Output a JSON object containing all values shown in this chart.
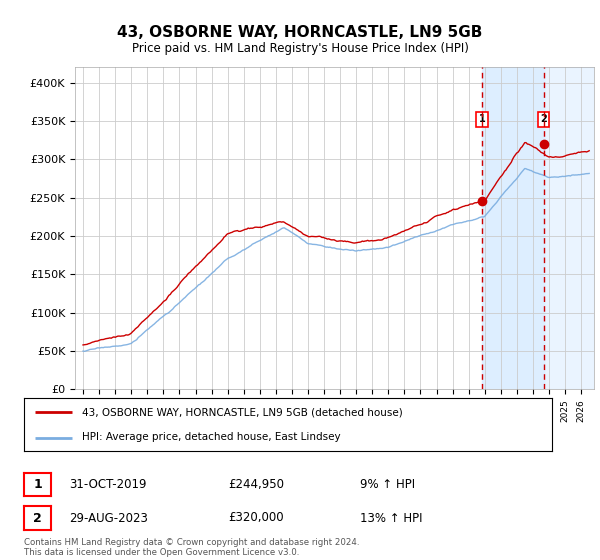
{
  "title": "43, OSBORNE WAY, HORNCASTLE, LN9 5GB",
  "subtitle": "Price paid vs. HM Land Registry's House Price Index (HPI)",
  "hpi_label": "HPI: Average price, detached house, East Lindsey",
  "property_label": "43, OSBORNE WAY, HORNCASTLE, LN9 5GB (detached house)",
  "transaction1_date": "31-OCT-2019",
  "transaction1_price": "£244,950",
  "transaction1_info": "9% ↑ HPI",
  "transaction2_date": "29-AUG-2023",
  "transaction2_price": "£320,000",
  "transaction2_info": "13% ↑ HPI",
  "ylabel_ticks": [
    "£0",
    "£50K",
    "£100K",
    "£150K",
    "£200K",
    "£250K",
    "£300K",
    "£350K",
    "£400K"
  ],
  "ytick_values": [
    0,
    50000,
    100000,
    150000,
    200000,
    250000,
    300000,
    350000,
    400000
  ],
  "ylim": [
    0,
    420000
  ],
  "red_color": "#cc0000",
  "blue_color": "#7aade0",
  "background_color": "#ffffff",
  "grid_color": "#cccccc",
  "footnote": "Contains HM Land Registry data © Crown copyright and database right 2024.\nThis data is licensed under the Open Government Licence v3.0.",
  "transaction1_year": 2019.83,
  "transaction2_year": 2023.66,
  "transaction1_value": 244950,
  "transaction2_value": 320000
}
